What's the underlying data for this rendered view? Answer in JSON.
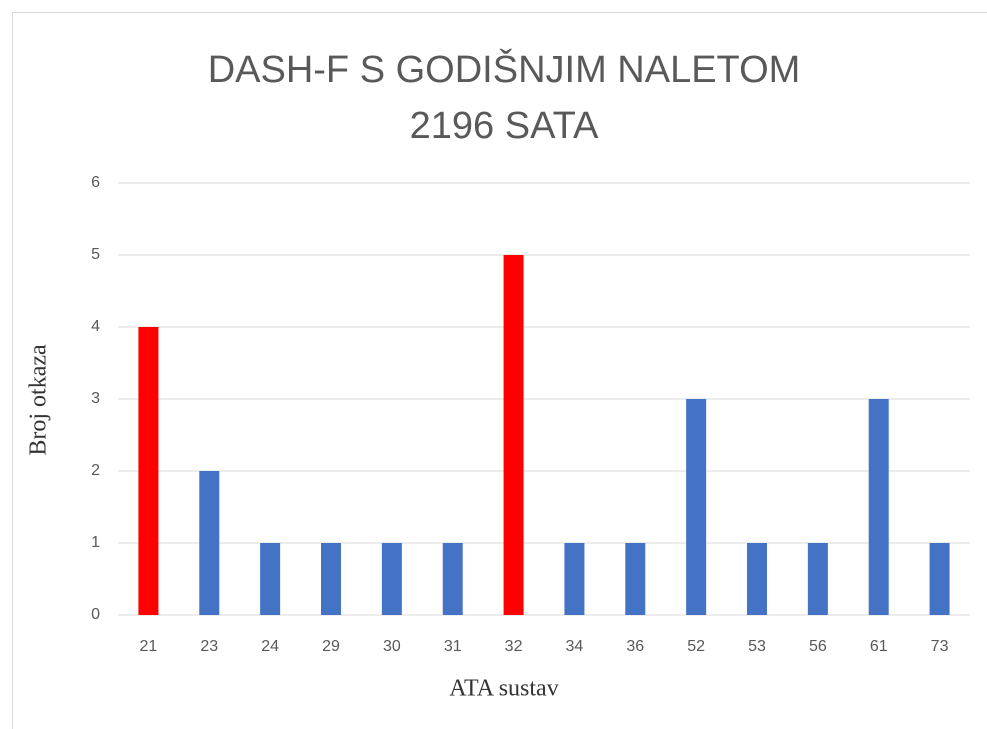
{
  "chart_data": {
    "type": "bar",
    "title": [
      "DASH-F S GODIŠNJIM NALETOM",
      "2196 SATA"
    ],
    "xlabel": "ATA sustav",
    "ylabel": "Broj otkaza",
    "categories": [
      "21",
      "23",
      "24",
      "29",
      "30",
      "31",
      "32",
      "34",
      "36",
      "52",
      "53",
      "56",
      "61",
      "73"
    ],
    "values": [
      4,
      2,
      1,
      1,
      1,
      1,
      5,
      1,
      1,
      3,
      1,
      1,
      3,
      1
    ],
    "colors": [
      "#ff0000",
      "#4472c4",
      "#4472c4",
      "#4472c4",
      "#4472c4",
      "#4472c4",
      "#ff0000",
      "#4472c4",
      "#4472c4",
      "#4472c4",
      "#4472c4",
      "#4472c4",
      "#4472c4",
      "#4472c4"
    ],
    "ylim": [
      0,
      6
    ],
    "yticks": [
      0,
      1,
      2,
      3,
      4,
      5,
      6
    ],
    "grid": true
  }
}
